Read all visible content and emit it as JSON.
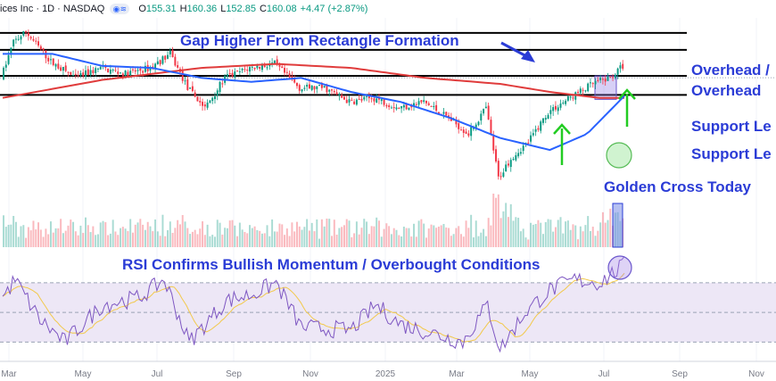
{
  "header": {
    "symbol_text": "ices Inc · 1D · NASDAQ",
    "badge_icon": "currency-eye-icon",
    "open_label": "O",
    "open": "155.31",
    "high_label": "H",
    "high": "160.36",
    "low_label": "L",
    "low": "152.85",
    "close_label": "C",
    "close": "160.08",
    "change": "+4.47 (+2.87%)"
  },
  "colors": {
    "up": "#089981",
    "down": "#f23645",
    "ma_fast": "#2962ff",
    "ma_slow": "#e03c3c",
    "annotation": "#2b3cd6",
    "arrow": "#22cc22",
    "rsi_line": "#7e57c2",
    "rsi_ma": "#f2c94c",
    "rsi_band": "#ede7f6"
  },
  "annotations": {
    "title": "Gap Higher From Rectangle Formation",
    "level_1": "Overhead /",
    "level_2": "Overhead",
    "level_3": "Support Le",
    "level_4": "Support Le",
    "golden_cross": "Golden Cross Today",
    "rsi_note": "RSI Confirms Bullish Momentum / Overbought Conditions"
  },
  "chart_data": {
    "type": "candlestick",
    "x_ticks": [
      "Mar",
      "May",
      "Jul",
      "Sep",
      "Nov",
      "2025",
      "Mar",
      "May",
      "Jul",
      "Sep",
      "Nov"
    ],
    "price_range": [
      75,
      190
    ],
    "horizontal_levels": [
      182.5,
      174,
      161,
      151.5
    ],
    "anchors": [
      {
        "i": 0,
        "p": 160
      },
      {
        "i": 5,
        "p": 178
      },
      {
        "i": 10,
        "p": 183
      },
      {
        "i": 20,
        "p": 168
      },
      {
        "i": 30,
        "p": 160
      },
      {
        "i": 40,
        "p": 165
      },
      {
        "i": 50,
        "p": 162
      },
      {
        "i": 60,
        "p": 165
      },
      {
        "i": 68,
        "p": 172
      },
      {
        "i": 75,
        "p": 155
      },
      {
        "i": 82,
        "p": 145
      },
      {
        "i": 90,
        "p": 160
      },
      {
        "i": 100,
        "p": 165
      },
      {
        "i": 110,
        "p": 167
      },
      {
        "i": 120,
        "p": 155
      },
      {
        "i": 130,
        "p": 155
      },
      {
        "i": 140,
        "p": 148
      },
      {
        "i": 150,
        "p": 150
      },
      {
        "i": 160,
        "p": 145
      },
      {
        "i": 170,
        "p": 148
      },
      {
        "i": 180,
        "p": 140
      },
      {
        "i": 188,
        "p": 132
      },
      {
        "i": 195,
        "p": 145
      },
      {
        "i": 200,
        "p": 110
      },
      {
        "i": 205,
        "p": 120
      },
      {
        "i": 212,
        "p": 128
      },
      {
        "i": 220,
        "p": 143
      },
      {
        "i": 230,
        "p": 151
      },
      {
        "i": 238,
        "p": 157
      },
      {
        "i": 245,
        "p": 160
      },
      {
        "i": 250,
        "p": 166
      }
    ],
    "ma_50": [
      {
        "i": 0,
        "p": 172
      },
      {
        "i": 20,
        "p": 172
      },
      {
        "i": 40,
        "p": 166
      },
      {
        "i": 60,
        "p": 165
      },
      {
        "i": 80,
        "p": 160
      },
      {
        "i": 100,
        "p": 158
      },
      {
        "i": 120,
        "p": 160
      },
      {
        "i": 140,
        "p": 153
      },
      {
        "i": 160,
        "p": 148
      },
      {
        "i": 180,
        "p": 140
      },
      {
        "i": 200,
        "p": 130
      },
      {
        "i": 220,
        "p": 124
      },
      {
        "i": 235,
        "p": 132
      },
      {
        "i": 250,
        "p": 151
      }
    ],
    "ma_200": [
      {
        "i": 0,
        "p": 150
      },
      {
        "i": 40,
        "p": 159
      },
      {
        "i": 80,
        "p": 165
      },
      {
        "i": 110,
        "p": 167
      },
      {
        "i": 140,
        "p": 165
      },
      {
        "i": 170,
        "p": 160
      },
      {
        "i": 200,
        "p": 157
      },
      {
        "i": 220,
        "p": 153
      },
      {
        "i": 240,
        "p": 150
      },
      {
        "i": 250,
        "p": 150
      }
    ],
    "rsi_range": [
      20,
      85
    ],
    "rsi_levels": [
      70,
      50,
      30
    ],
    "rsi_anchors": [
      {
        "i": 0,
        "v": 60
      },
      {
        "i": 5,
        "v": 72
      },
      {
        "i": 15,
        "v": 45
      },
      {
        "i": 25,
        "v": 30
      },
      {
        "i": 40,
        "v": 55
      },
      {
        "i": 55,
        "v": 60
      },
      {
        "i": 65,
        "v": 72
      },
      {
        "i": 75,
        "v": 30
      },
      {
        "i": 90,
        "v": 58
      },
      {
        "i": 100,
        "v": 62
      },
      {
        "i": 110,
        "v": 70
      },
      {
        "i": 120,
        "v": 40
      },
      {
        "i": 140,
        "v": 38
      },
      {
        "i": 150,
        "v": 55
      },
      {
        "i": 160,
        "v": 42
      },
      {
        "i": 175,
        "v": 35
      },
      {
        "i": 185,
        "v": 30
      },
      {
        "i": 195,
        "v": 55
      },
      {
        "i": 200,
        "v": 25
      },
      {
        "i": 210,
        "v": 50
      },
      {
        "i": 220,
        "v": 65
      },
      {
        "i": 230,
        "v": 72
      },
      {
        "i": 240,
        "v": 70
      },
      {
        "i": 250,
        "v": 82
      }
    ],
    "bar_count": 250
  }
}
